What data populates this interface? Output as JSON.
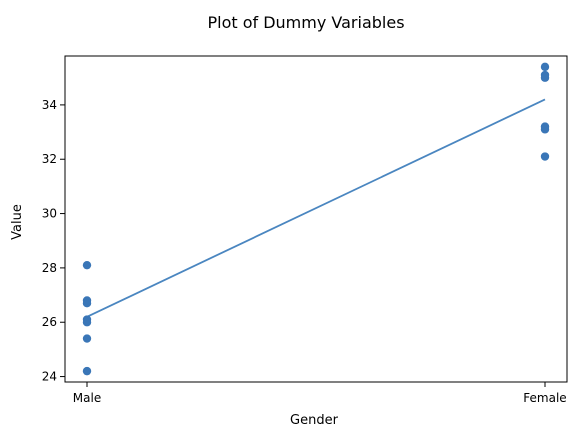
{
  "chart_data": {
    "type": "scatter",
    "title": "Plot of Dummy Variables",
    "xlabel": "Gender",
    "ylabel": "Value",
    "categories": [
      "Male",
      "Female"
    ],
    "x_numeric": [
      0,
      1
    ],
    "ylim": [
      23.8,
      35.8
    ],
    "yticks": [
      24,
      26,
      28,
      30,
      32,
      34
    ],
    "grid": false,
    "points": [
      {
        "x": "Male",
        "y": 28.1
      },
      {
        "x": "Male",
        "y": 26.8
      },
      {
        "x": "Male",
        "y": 26.7
      },
      {
        "x": "Male",
        "y": 26.1
      },
      {
        "x": "Male",
        "y": 26.0
      },
      {
        "x": "Male",
        "y": 25.4
      },
      {
        "x": "Male",
        "y": 24.2
      },
      {
        "x": "Female",
        "y": 35.4
      },
      {
        "x": "Female",
        "y": 35.1
      },
      {
        "x": "Female",
        "y": 35.0
      },
      {
        "x": "Female",
        "y": 33.2
      },
      {
        "x": "Female",
        "y": 33.1
      },
      {
        "x": "Female",
        "y": 32.1
      }
    ],
    "fit_line": {
      "x": [
        "Male",
        "Female"
      ],
      "y": [
        26.2,
        34.2
      ]
    },
    "colors": {
      "points": "#3a76b7",
      "line": "#4a86c0"
    }
  }
}
